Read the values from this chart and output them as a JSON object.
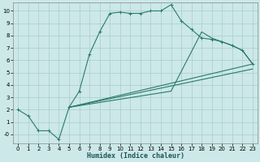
{
  "title": "",
  "xlabel": "Humidex (Indice chaleur)",
  "ylabel": "",
  "background_color": "#cce8e8",
  "grid_color": "#aacccc",
  "line_color": "#2a7a6e",
  "xlim": [
    -0.5,
    23.5
  ],
  "ylim": [
    -0.7,
    10.7
  ],
  "xticks": [
    0,
    1,
    2,
    3,
    4,
    5,
    6,
    7,
    8,
    9,
    10,
    11,
    12,
    13,
    14,
    15,
    16,
    17,
    18,
    19,
    20,
    21,
    22,
    23
  ],
  "ytick_vals": [
    0,
    1,
    2,
    3,
    4,
    5,
    6,
    7,
    8,
    9,
    10
  ],
  "ytick_labels": [
    "-0",
    "1",
    "2",
    "3",
    "4",
    "5",
    "6",
    "7",
    "8",
    "9",
    "10"
  ],
  "line1_x": [
    0,
    1,
    2,
    3,
    4,
    5,
    6,
    7,
    8,
    9,
    10,
    11,
    12,
    13,
    14,
    15,
    16,
    17,
    18,
    19,
    20,
    21,
    22,
    23
  ],
  "line1_y": [
    2.0,
    1.5,
    0.3,
    0.3,
    -0.4,
    2.2,
    3.5,
    6.5,
    8.3,
    9.8,
    9.9,
    9.8,
    9.8,
    10.0,
    10.0,
    10.5,
    9.2,
    8.5,
    7.8,
    7.7,
    7.5,
    7.2,
    6.8,
    5.7
  ],
  "line2_x": [
    5,
    15,
    18,
    19,
    20,
    21,
    22,
    23
  ],
  "line2_y": [
    2.2,
    3.5,
    8.3,
    7.8,
    7.5,
    7.2,
    6.8,
    5.7
  ],
  "line3_x": [
    5,
    23
  ],
  "line3_y": [
    2.2,
    5.7
  ],
  "line4_x": [
    5,
    23
  ],
  "line4_y": [
    2.2,
    5.3
  ]
}
